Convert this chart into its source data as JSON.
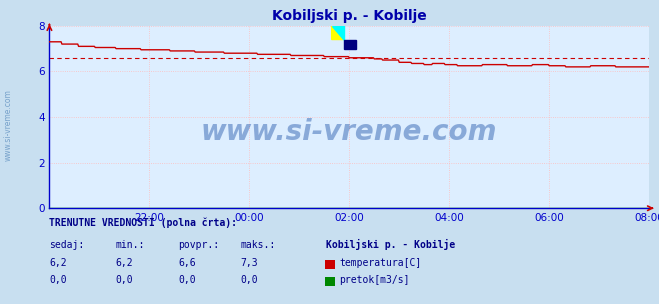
{
  "title": "Kobiljski p. - Kobilje",
  "title_color": "#0000aa",
  "bg_color": "#c8dff0",
  "plot_bg_color": "#ddeeff",
  "spine_color": "#0000cc",
  "grid_color": "#ffbbbb",
  "grid_style": "dotted",
  "x_ticks_labels": [
    "22:00",
    "00:00",
    "02:00",
    "04:00",
    "06:00",
    "08:00"
  ],
  "x_ticks_pos": [
    120,
    240,
    360,
    480,
    600,
    720
  ],
  "ylim": [
    0,
    8
  ],
  "yticks": [
    0,
    2,
    4,
    6,
    8
  ],
  "tick_color": "#0000cc",
  "temp_color": "#cc0000",
  "flow_color": "#008800",
  "dashed_color": "#cc0000",
  "arrow_color": "#cc0000",
  "watermark_text": "www.si-vreme.com",
  "watermark_color": "#2255aa",
  "watermark_alpha": 0.45,
  "side_watermark": "www.si-vreme.com",
  "side_watermark_color": "#5588bb",
  "footer_title": "TRENUTNE VREDNOSTI (polna črta):",
  "footer_color": "#000088",
  "station_name": "Kobiljski p. - Kobilje",
  "cols": [
    "sedaj:",
    "min.:",
    "povpr.:",
    "maks.:"
  ],
  "temp_values": [
    "6,2",
    "6,2",
    "6,6",
    "7,3"
  ],
  "flow_values": [
    "0,0",
    "0,0",
    "0,0",
    "0,0"
  ],
  "legend_temp": "temperatura[C]",
  "legend_flow": "pretok[m3/s]",
  "avg_temp": 6.6,
  "n_points": 721
}
